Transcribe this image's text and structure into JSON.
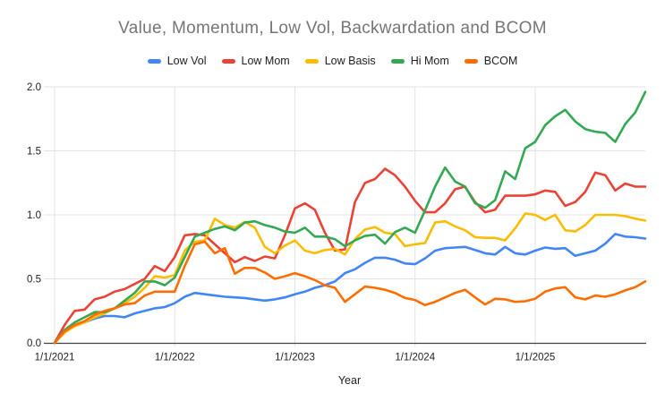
{
  "chart_data": {
    "type": "line",
    "title": "Value, Momentum, Low Vol, Backwardation and BCOM",
    "xlabel": "Year",
    "ylabel": "",
    "ylim": [
      0,
      2
    ],
    "grid": true,
    "legend_position": "top",
    "x_unit": "month",
    "x_start_label": "1/1/2021",
    "points_per_year": 12,
    "x_tick_labels": [
      "1/1/2021",
      "1/1/2022",
      "1/1/2023",
      "1/1/2024",
      "1/1/2025"
    ],
    "y_ticks": [
      0,
      0.5,
      1,
      1.5,
      2
    ],
    "y_tick_labels": [
      "0.0",
      "0.5",
      "1.0",
      "1.5",
      "2.0"
    ],
    "gridline_color": "#e3e3e3",
    "axis_color": "#424242",
    "title_color": "#757575",
    "label_color": "#212121",
    "series": [
      {
        "name": "Low Vol",
        "color": "#4285f4",
        "values": [
          0,
          0.1,
          0.14,
          0.16,
          0.19,
          0.21,
          0.21,
          0.2,
          0.23,
          0.25,
          0.27,
          0.28,
          0.31,
          0.36,
          0.39,
          0.38,
          0.37,
          0.36,
          0.355,
          0.35,
          0.34,
          0.33,
          0.34,
          0.355,
          0.38,
          0.4,
          0.43,
          0.45,
          0.48,
          0.545,
          0.575,
          0.625,
          0.665,
          0.665,
          0.65,
          0.62,
          0.615,
          0.66,
          0.72,
          0.74,
          0.745,
          0.75,
          0.725,
          0.7,
          0.69,
          0.75,
          0.7,
          0.69,
          0.72,
          0.745,
          0.735,
          0.74,
          0.68,
          0.7,
          0.72,
          0.775,
          0.85,
          0.83,
          0.825,
          0.815
        ]
      },
      {
        "name": "Low Mom",
        "color": "#ea4335",
        "values": [
          0,
          0.14,
          0.25,
          0.26,
          0.34,
          0.36,
          0.4,
          0.42,
          0.46,
          0.5,
          0.6,
          0.56,
          0.67,
          0.84,
          0.85,
          0.84,
          0.77,
          0.7,
          0.63,
          0.67,
          0.64,
          0.675,
          0.66,
          0.84,
          1.05,
          1.09,
          1.04,
          0.86,
          0.72,
          0.73,
          1.1,
          1.25,
          1.28,
          1.36,
          1.31,
          1.22,
          1.11,
          1.02,
          1.02,
          1.09,
          1.2,
          1.22,
          1.1,
          1.02,
          1.04,
          1.15,
          1.15,
          1.15,
          1.16,
          1.19,
          1.18,
          1.07,
          1.1,
          1.18,
          1.33,
          1.31,
          1.19,
          1.245,
          1.22,
          1.22
        ]
      },
      {
        "name": "Low Basis",
        "color": "#fbbc04",
        "values": [
          0,
          0.08,
          0.13,
          0.16,
          0.2,
          0.23,
          0.27,
          0.31,
          0.36,
          0.43,
          0.52,
          0.51,
          0.53,
          0.72,
          0.79,
          0.8,
          0.97,
          0.92,
          0.9,
          0.945,
          0.9,
          0.75,
          0.7,
          0.76,
          0.8,
          0.72,
          0.7,
          0.725,
          0.735,
          0.69,
          0.81,
          0.885,
          0.905,
          0.86,
          0.85,
          0.755,
          0.77,
          0.78,
          0.94,
          0.95,
          0.91,
          0.88,
          0.825,
          0.82,
          0.82,
          0.8,
          0.895,
          1.01,
          1.0,
          0.96,
          1.0,
          0.88,
          0.87,
          0.92,
          1.0,
          1.0,
          1.0,
          0.99,
          0.97,
          0.955
        ]
      },
      {
        "name": "Hi Mom",
        "color": "#34a853",
        "values": [
          0,
          0.1,
          0.16,
          0.2,
          0.24,
          0.24,
          0.27,
          0.33,
          0.39,
          0.48,
          0.48,
          0.45,
          0.51,
          0.67,
          0.83,
          0.86,
          0.89,
          0.91,
          0.88,
          0.94,
          0.95,
          0.92,
          0.9,
          0.87,
          0.86,
          0.9,
          0.83,
          0.83,
          0.81,
          0.755,
          0.8,
          0.835,
          0.845,
          0.775,
          0.865,
          0.9,
          0.86,
          1.035,
          1.22,
          1.37,
          1.26,
          1.22,
          1.09,
          1.055,
          1.115,
          1.34,
          1.28,
          1.52,
          1.57,
          1.7,
          1.77,
          1.82,
          1.73,
          1.67,
          1.65,
          1.64,
          1.57,
          1.71,
          1.8,
          1.96
        ]
      },
      {
        "name": "BCOM",
        "color": "#ff6d01",
        "values": [
          0,
          0.09,
          0.14,
          0.17,
          0.22,
          0.25,
          0.27,
          0.3,
          0.31,
          0.37,
          0.4,
          0.4,
          0.4,
          0.6,
          0.77,
          0.79,
          0.7,
          0.74,
          0.54,
          0.585,
          0.585,
          0.55,
          0.5,
          0.52,
          0.545,
          0.52,
          0.49,
          0.45,
          0.43,
          0.32,
          0.38,
          0.44,
          0.43,
          0.415,
          0.39,
          0.35,
          0.335,
          0.295,
          0.32,
          0.355,
          0.39,
          0.415,
          0.355,
          0.3,
          0.345,
          0.34,
          0.32,
          0.325,
          0.345,
          0.4,
          0.425,
          0.435,
          0.355,
          0.34,
          0.37,
          0.36,
          0.38,
          0.41,
          0.435,
          0.48
        ]
      }
    ]
  }
}
